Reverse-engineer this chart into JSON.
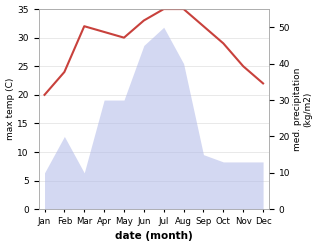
{
  "months": [
    "Jan",
    "Feb",
    "Mar",
    "Apr",
    "May",
    "Jun",
    "Jul",
    "Aug",
    "Sep",
    "Oct",
    "Nov",
    "Dec"
  ],
  "precipitation": [
    10,
    20,
    10,
    30,
    30,
    45,
    50,
    40,
    15,
    13,
    13,
    13
  ],
  "max_temp": [
    20,
    24,
    32,
    31,
    30,
    33,
    35,
    35,
    32,
    29,
    25,
    22
  ],
  "precip_color": "#b0b8e8",
  "temp_color": "#c8413c",
  "ylabel_left": "max temp (C)",
  "ylabel_right": "med. precipitation\n(kg/m2)",
  "xlabel": "date (month)",
  "ylim_left": [
    0,
    35
  ],
  "ylim_right": [
    0,
    55
  ],
  "yticks_left": [
    0,
    5,
    10,
    15,
    20,
    25,
    30,
    35
  ],
  "yticks_right": [
    0,
    10,
    20,
    30,
    40,
    50
  ],
  "background_color": "#ffffff",
  "fill_alpha": 0.55
}
